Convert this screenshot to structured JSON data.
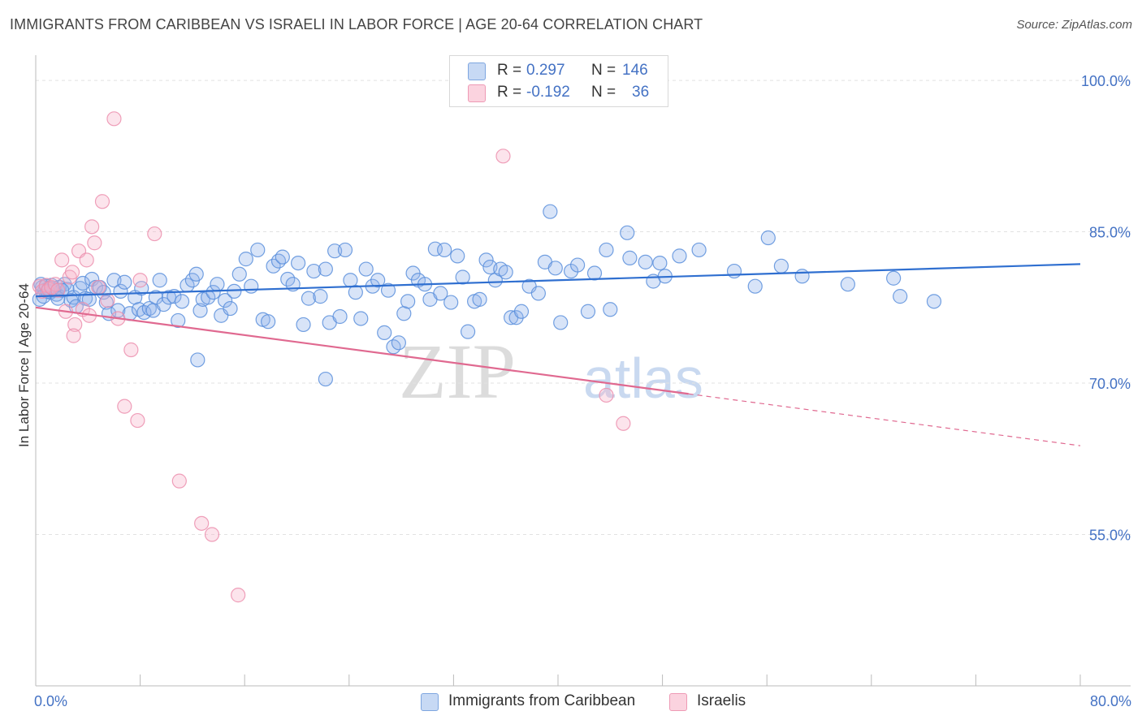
{
  "header": {
    "title": "IMMIGRANTS FROM CARIBBEAN VS ISRAELI IN LABOR FORCE | AGE 20-64 CORRELATION CHART",
    "source": "Source: ZipAtlas.com"
  },
  "watermark": {
    "part1": "ZIP",
    "part2": "atlas"
  },
  "legend": {
    "rows": [
      {
        "r_label": "R =",
        "r_value": "0.297",
        "n_label": "N =",
        "n_value": "146",
        "color": "#aac4ee"
      },
      {
        "r_label": "R =",
        "r_value": "-0.192",
        "n_label": "N =",
        "n_value": "36",
        "color": "#f7bccd"
      }
    ]
  },
  "bottom_legend": {
    "items": [
      {
        "label": "Immigrants from Caribbean",
        "color": "#aac4ee"
      },
      {
        "label": "Israelis",
        "color": "#f7bccd"
      }
    ]
  },
  "chart_data": {
    "type": "scatter",
    "title": "IMMIGRANTS FROM CARIBBEAN VS ISRAELI IN LABOR FORCE | AGE 20-64 CORRELATION CHART",
    "xlabel": "",
    "ylabel": "In Labor Force | Age 20-64",
    "xlim": [
      0,
      80
    ],
    "ylim": [
      40,
      102.5
    ],
    "x_tick_labels": [
      {
        "value": 0,
        "label": "0.0%"
      },
      {
        "value": 80,
        "label": "80.0%"
      }
    ],
    "y_tick_labels": [
      {
        "value": 100,
        "label": "100.0%"
      },
      {
        "value": 85,
        "label": "85.0%"
      },
      {
        "value": 70,
        "label": "70.0%"
      },
      {
        "value": 55,
        "label": "55.0%"
      }
    ],
    "grid": "horizontal dashed",
    "legend_position": "top-center",
    "series": [
      {
        "name": "Immigrants from Caribbean",
        "color": "#6fa0e0",
        "line_color": "#2f6fd0",
        "trend": {
          "x0": 0,
          "y0": 78.6,
          "x1": 80,
          "y1": 81.8,
          "dash_from": null
        },
        "points": [
          [
            0.3,
            78.3
          ],
          [
            0.5,
            79.5
          ],
          [
            0.7,
            79.2
          ],
          [
            0.8,
            79.6
          ],
          [
            1.0,
            79.4
          ],
          [
            1.1,
            79.0
          ],
          [
            1.2,
            79.7
          ],
          [
            1.4,
            79.2
          ],
          [
            1.6,
            78.8
          ],
          [
            1.8,
            79.5
          ],
          [
            2.2,
            79.8
          ],
          [
            2.4,
            79.3
          ],
          [
            2.7,
            78.2
          ],
          [
            2.9,
            78.5
          ],
          [
            3.1,
            77.6
          ],
          [
            3.4,
            79.4
          ],
          [
            3.6,
            79.9
          ],
          [
            3.8,
            78.4
          ],
          [
            4.1,
            78.3
          ],
          [
            4.3,
            80.3
          ],
          [
            4.6,
            79.5
          ],
          [
            4.9,
            79.5
          ],
          [
            5.2,
            79.0
          ],
          [
            5.4,
            78.0
          ],
          [
            5.6,
            76.9
          ],
          [
            6.0,
            80.2
          ],
          [
            6.3,
            77.2
          ],
          [
            6.5,
            79.1
          ],
          [
            6.8,
            80.0
          ],
          [
            7.2,
            76.9
          ],
          [
            7.6,
            78.5
          ],
          [
            7.9,
            77.3
          ],
          [
            8.1,
            79.4
          ],
          [
            8.3,
            77.0
          ],
          [
            8.7,
            77.4
          ],
          [
            9.0,
            77.2
          ],
          [
            9.2,
            78.5
          ],
          [
            9.5,
            80.2
          ],
          [
            9.8,
            77.8
          ],
          [
            10.2,
            78.5
          ],
          [
            10.6,
            78.6
          ],
          [
            10.9,
            76.2
          ],
          [
            11.2,
            78.1
          ],
          [
            11.6,
            79.7
          ],
          [
            12.0,
            80.2
          ],
          [
            12.3,
            80.8
          ],
          [
            12.6,
            77.2
          ],
          [
            12.8,
            78.3
          ],
          [
            13.2,
            78.5
          ],
          [
            13.6,
            79.0
          ],
          [
            13.9,
            79.8
          ],
          [
            14.2,
            76.7
          ],
          [
            14.5,
            78.2
          ],
          [
            14.9,
            77.4
          ],
          [
            15.2,
            79.1
          ],
          [
            15.6,
            80.8
          ],
          [
            16.1,
            82.3
          ],
          [
            16.5,
            79.6
          ],
          [
            17.0,
            83.2
          ],
          [
            17.4,
            76.3
          ],
          [
            17.8,
            76.1
          ],
          [
            18.2,
            81.6
          ],
          [
            18.6,
            82.1
          ],
          [
            18.9,
            82.5
          ],
          [
            19.3,
            80.3
          ],
          [
            19.7,
            79.8
          ],
          [
            20.1,
            81.9
          ],
          [
            20.5,
            75.8
          ],
          [
            20.9,
            78.4
          ],
          [
            21.3,
            81.1
          ],
          [
            21.8,
            78.6
          ],
          [
            22.2,
            81.3
          ],
          [
            22.5,
            76.0
          ],
          [
            22.9,
            83.1
          ],
          [
            23.3,
            76.6
          ],
          [
            23.7,
            83.2
          ],
          [
            24.1,
            80.2
          ],
          [
            24.5,
            79.0
          ],
          [
            24.9,
            76.4
          ],
          [
            25.3,
            81.3
          ],
          [
            25.8,
            79.6
          ],
          [
            26.2,
            80.2
          ],
          [
            26.7,
            75.0
          ],
          [
            27.0,
            79.2
          ],
          [
            27.4,
            73.6
          ],
          [
            27.8,
            74.0
          ],
          [
            28.2,
            76.9
          ],
          [
            28.5,
            78.1
          ],
          [
            28.9,
            80.9
          ],
          [
            29.3,
            80.2
          ],
          [
            29.8,
            79.8
          ],
          [
            30.2,
            78.3
          ],
          [
            30.6,
            83.3
          ],
          [
            31.0,
            78.9
          ],
          [
            31.3,
            83.2
          ],
          [
            31.8,
            78.0
          ],
          [
            32.3,
            82.6
          ],
          [
            32.7,
            80.5
          ],
          [
            33.1,
            75.1
          ],
          [
            33.6,
            78.1
          ],
          [
            34.0,
            78.3
          ],
          [
            34.5,
            82.2
          ],
          [
            34.8,
            81.5
          ],
          [
            35.2,
            80.2
          ],
          [
            35.6,
            81.3
          ],
          [
            36.0,
            81.0
          ],
          [
            36.4,
            76.5
          ],
          [
            36.8,
            76.5
          ],
          [
            37.2,
            77.1
          ],
          [
            37.8,
            79.6
          ],
          [
            38.5,
            78.9
          ],
          [
            39.0,
            82.0
          ],
          [
            39.4,
            87.0
          ],
          [
            39.8,
            81.4
          ],
          [
            40.2,
            76.0
          ],
          [
            41.0,
            81.1
          ],
          [
            41.5,
            81.7
          ],
          [
            42.3,
            77.1
          ],
          [
            42.8,
            80.9
          ],
          [
            43.7,
            83.2
          ],
          [
            45.3,
            84.9
          ],
          [
            45.5,
            82.4
          ],
          [
            44.0,
            77.3
          ],
          [
            46.7,
            82.0
          ],
          [
            47.3,
            80.1
          ],
          [
            47.8,
            81.9
          ],
          [
            48.2,
            80.6
          ],
          [
            49.3,
            82.6
          ],
          [
            50.8,
            83.2
          ],
          [
            53.5,
            81.1
          ],
          [
            55.1,
            79.6
          ],
          [
            56.1,
            84.4
          ],
          [
            57.1,
            81.6
          ],
          [
            58.7,
            80.6
          ],
          [
            62.2,
            79.8
          ],
          [
            65.7,
            80.4
          ],
          [
            66.2,
            78.6
          ],
          [
            68.8,
            78.1
          ],
          [
            12.4,
            72.3
          ],
          [
            22.2,
            70.4
          ],
          [
            0.4,
            79.8
          ],
          [
            0.6,
            78.6
          ],
          [
            0.9,
            79.1
          ],
          [
            1.3,
            79.4
          ],
          [
            1.7,
            78.4
          ],
          [
            2.0,
            79.2
          ]
        ]
      },
      {
        "name": "Israelis",
        "color": "#f4a3bd",
        "line_color": "#e06990",
        "trend": {
          "x0": 0,
          "y0": 77.5,
          "x1": 80,
          "y1": 63.8,
          "dash_from": 50
        },
        "points": [
          [
            0.3,
            79.6
          ],
          [
            0.5,
            79.1
          ],
          [
            0.8,
            79.7
          ],
          [
            1.0,
            79.3
          ],
          [
            1.2,
            79.5
          ],
          [
            1.5,
            79.8
          ],
          [
            1.7,
            79.2
          ],
          [
            2.0,
            82.2
          ],
          [
            2.3,
            77.1
          ],
          [
            2.6,
            80.5
          ],
          [
            2.8,
            81.0
          ],
          [
            3.0,
            75.8
          ],
          [
            3.3,
            83.1
          ],
          [
            3.6,
            77.3
          ],
          [
            3.9,
            82.2
          ],
          [
            4.3,
            85.5
          ],
          [
            4.5,
            83.9
          ],
          [
            4.8,
            79.5
          ],
          [
            5.1,
            88.0
          ],
          [
            5.5,
            78.2
          ],
          [
            6.0,
            96.2
          ],
          [
            6.3,
            76.4
          ],
          [
            6.8,
            67.7
          ],
          [
            7.3,
            73.3
          ],
          [
            7.8,
            66.3
          ],
          [
            8.0,
            80.2
          ],
          [
            9.1,
            84.8
          ],
          [
            11.0,
            60.3
          ],
          [
            12.7,
            56.1
          ],
          [
            13.5,
            55.0
          ],
          [
            15.5,
            49.0
          ],
          [
            35.8,
            92.5
          ],
          [
            43.7,
            68.8
          ],
          [
            45.0,
            66.0
          ],
          [
            2.9,
            74.7
          ],
          [
            4.1,
            76.7
          ]
        ]
      }
    ]
  }
}
